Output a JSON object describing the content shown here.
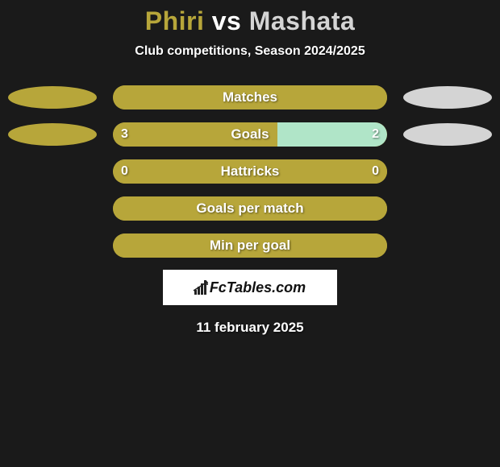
{
  "colors": {
    "background": "#1a1a1a",
    "player1": "#b7a63a",
    "player2": "#d4d4d4",
    "accent_bar": "#b0e5c8",
    "white": "#ffffff"
  },
  "typography": {
    "title_fontsize": 32,
    "subtitle_fontsize": 16,
    "label_fontsize": 17,
    "value_fontsize": 16
  },
  "title": {
    "player1": "Phiri",
    "vs": " vs ",
    "player2": "Mashata"
  },
  "subtitle": "Club competitions, Season 2024/2025",
  "metrics": [
    {
      "label": "Matches",
      "left_value": "",
      "right_value": "",
      "left_fill_pct": 100,
      "right_fill_pct": 0,
      "left_fill_color": "#b7a63a",
      "right_fill_color": "#b7a63a",
      "bar_bg": "#b7a63a",
      "show_left_ellipse": true,
      "show_right_ellipse": true,
      "left_ellipse_color": "#b7a63a",
      "right_ellipse_color": "#d4d4d4"
    },
    {
      "label": "Goals",
      "left_value": "3",
      "right_value": "2",
      "left_fill_pct": 60,
      "right_fill_pct": 40,
      "left_fill_color": "#b7a63a",
      "right_fill_color": "#b0e5c8",
      "bar_bg": "#b7a63a",
      "show_left_ellipse": true,
      "show_right_ellipse": true,
      "left_ellipse_color": "#b7a63a",
      "right_ellipse_color": "#d4d4d4"
    },
    {
      "label": "Hattricks",
      "left_value": "0",
      "right_value": "0",
      "left_fill_pct": 100,
      "right_fill_pct": 0,
      "left_fill_color": "#b7a63a",
      "right_fill_color": "#b7a63a",
      "bar_bg": "#b7a63a",
      "show_left_ellipse": false,
      "show_right_ellipse": false
    },
    {
      "label": "Goals per match",
      "left_value": "",
      "right_value": "",
      "left_fill_pct": 100,
      "right_fill_pct": 0,
      "left_fill_color": "#b7a63a",
      "right_fill_color": "#b7a63a",
      "bar_bg": "#b7a63a",
      "show_left_ellipse": false,
      "show_right_ellipse": false
    },
    {
      "label": "Min per goal",
      "left_value": "",
      "right_value": "",
      "left_fill_pct": 100,
      "right_fill_pct": 0,
      "left_fill_color": "#b7a63a",
      "right_fill_color": "#b7a63a",
      "bar_bg": "#b7a63a",
      "show_left_ellipse": false,
      "show_right_ellipse": false
    }
  ],
  "branding": {
    "name": "FcTables.com"
  },
  "date": "11 february 2025"
}
